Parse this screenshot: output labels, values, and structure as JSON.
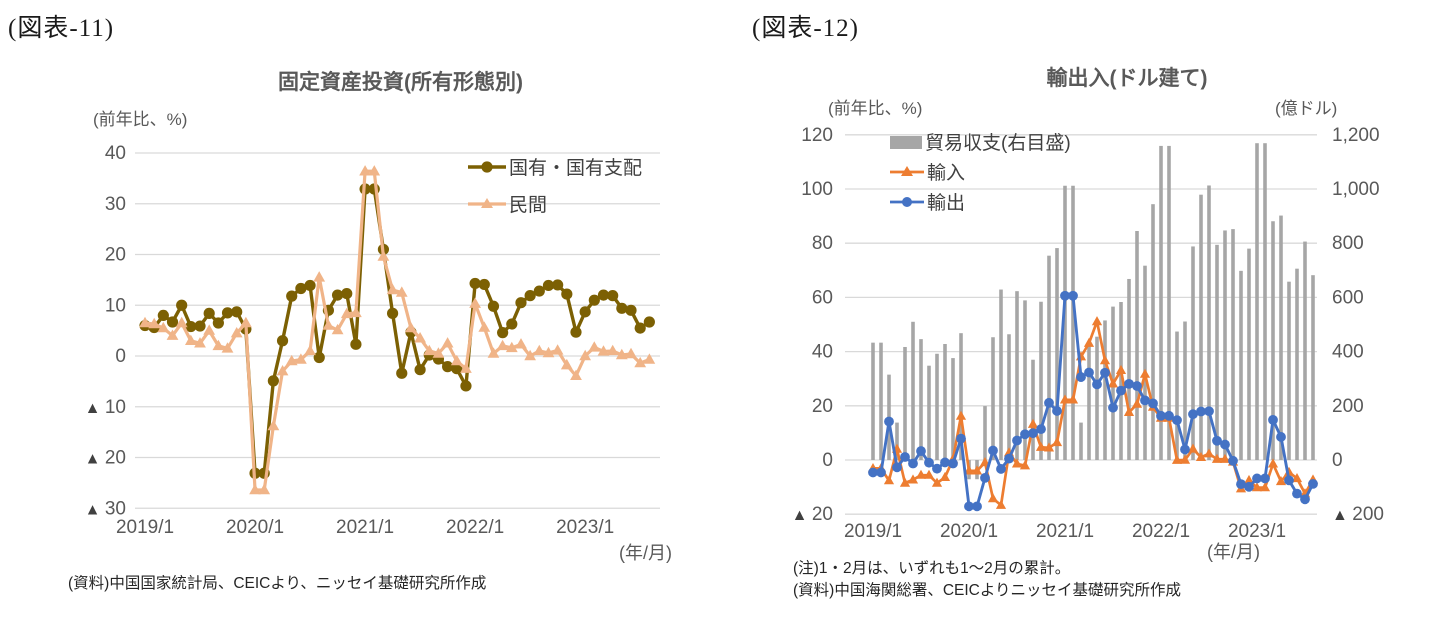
{
  "page": {
    "background": "#FFFFFF"
  },
  "chart_data": [
    {
      "id": "fig11",
      "type": "line",
      "tag": "(図表-11)",
      "title": "固定資産投資(所有形態別)",
      "left_axis_unit": "(前年比、%)",
      "x_axis_unit": "(年/月)",
      "source": "(資料)中国国家統計局、CEICより、ニッセイ基礎研究所作成",
      "x_start": "2019/1",
      "x_end": "2023/8",
      "x_frequency": "monthly",
      "x_tick_labels": [
        "2019/1",
        "2020/1",
        "2021/1",
        "2022/1",
        "2023/1"
      ],
      "y_left": {
        "min": -30,
        "max": 40,
        "step": 10,
        "labels": [
          "40",
          "30",
          "20",
          "10",
          "0",
          "▲ 10",
          "▲ 20",
          "▲ 30"
        ]
      },
      "grid_on": true,
      "grid_color": "#D9D9D9",
      "tick_color": "#595959",
      "negative_mark_color": "#404040",
      "legend_position": "top-right-inside",
      "series": [
        {
          "name": "国有・国有支配",
          "type": "line",
          "marker": "circle",
          "color": "#7C6003",
          "values": [
            6.0,
            5.6,
            8.0,
            6.7,
            10.0,
            5.8,
            5.9,
            8.4,
            6.5,
            8.5,
            8.7,
            5.3,
            -23.1,
            -23.1,
            -4.9,
            3.0,
            11.8,
            13.3,
            13.9,
            -0.3,
            9.0,
            12.0,
            12.3,
            2.3,
            32.9,
            32.9,
            21.0,
            8.4,
            -3.4,
            4.7,
            -2.7,
            0.2,
            -0.6,
            -2.1,
            -2.5,
            -5.9,
            14.3,
            14.1,
            9.8,
            4.6,
            6.3,
            10.5,
            11.9,
            12.8,
            13.9,
            14.0,
            12.2,
            4.7,
            8.7,
            11.0,
            12.0,
            11.9,
            9.4,
            9.0,
            5.5,
            6.7
          ]
        },
        {
          "name": "民間",
          "type": "line",
          "marker": "triangle",
          "color": "#F0B488",
          "values": [
            6.5,
            6.3,
            5.5,
            4.0,
            6.5,
            3.0,
            2.5,
            5.0,
            2.0,
            1.5,
            4.5,
            6.5,
            -26.4,
            -26.4,
            -13.8,
            -3.0,
            -1.0,
            -0.7,
            1.0,
            15.5,
            6.0,
            5.1,
            8.3,
            8.5,
            36.4,
            36.4,
            19.6,
            13.0,
            12.5,
            5.5,
            3.5,
            1.0,
            0.5,
            2.5,
            -1.0,
            -2.5,
            10.3,
            5.6,
            0.5,
            2.0,
            1.6,
            2.3,
            0.0,
            1.0,
            0.6,
            1.1,
            -1.8,
            -3.9,
            0.0,
            1.7,
            0.9,
            1.0,
            0.2,
            0.4,
            -1.4,
            -0.7
          ]
        }
      ]
    },
    {
      "id": "fig12",
      "type": "bar-line-combo",
      "tag": "(図表-12)",
      "title": "輸出入(ドル建て)",
      "left_axis_unit": "(前年比、%)",
      "right_axis_unit": "(億ドル)",
      "x_axis_unit": "(年/月)",
      "note": "(注)1・2月は、いずれも1～2月の累計。",
      "source": "(資料)中国海関総署、CEICよりニッセイ基礎研究所作成",
      "x_start": "2019/1",
      "x_end": "2023/8",
      "x_frequency": "monthly",
      "x_tick_labels": [
        "2019/1",
        "2020/1",
        "2021/1",
        "2022/1",
        "2023/1"
      ],
      "y_left": {
        "min": -20,
        "max": 120,
        "step": 20,
        "labels": [
          "120",
          "100",
          "80",
          "60",
          "40",
          "20",
          "0",
          "▲ 20"
        ]
      },
      "y_right": {
        "min": -200,
        "max": 1200,
        "step": 200,
        "labels": [
          "1,200",
          "1,000",
          "800",
          "600",
          "400",
          "200",
          "0",
          "▲ 200"
        ]
      },
      "grid_on": true,
      "grid_color": "#D9D9D9",
      "tick_color": "#595959",
      "negative_mark_color": "#404040",
      "legend_position": "top-left-inside",
      "series": [
        {
          "name": "貿易収支(右目盛)",
          "type": "bar",
          "axis": "right",
          "color": "#A6A6A6",
          "values": [
            433,
            433,
            315,
            138,
            417,
            510,
            446,
            348,
            392,
            428,
            376,
            468,
            -71,
            -71,
            199,
            453,
            629,
            464,
            623,
            589,
            370,
            584,
            754,
            782,
            1012,
            1012,
            138,
            428,
            455,
            515,
            566,
            583,
            668,
            845,
            717,
            944,
            1159,
            1159,
            474,
            511,
            788,
            979,
            1013,
            794,
            847,
            852,
            698,
            780,
            1169,
            1169,
            881,
            902,
            658,
            706,
            806,
            682
          ]
        },
        {
          "name": "輸入",
          "type": "line",
          "marker": "triangle",
          "axis": "left",
          "color": "#ED7D31",
          "values": [
            -3.1,
            -3.1,
            -7.6,
            4.0,
            -8.5,
            -7.3,
            -5.6,
            -5.6,
            -8.5,
            -6.4,
            0.3,
            16.2,
            -4.0,
            -4.0,
            -0.9,
            -14.2,
            -16.7,
            2.7,
            -1.4,
            -2.1,
            13.2,
            4.7,
            4.5,
            6.5,
            22.2,
            22.2,
            38.1,
            43.1,
            51.1,
            36.7,
            28.1,
            33.1,
            17.6,
            20.6,
            31.7,
            19.5,
            15.5,
            15.5,
            -0.1,
            0.0,
            4.1,
            1.0,
            2.3,
            0.3,
            0.3,
            -0.7,
            -10.6,
            -7.5,
            -10.2,
            -10.2,
            -1.4,
            -7.9,
            -4.5,
            -6.8,
            -12.4,
            -7.3
          ]
        },
        {
          "name": "輸出",
          "type": "line",
          "marker": "circle",
          "axis": "left",
          "color": "#4472C4",
          "values": [
            -4.6,
            -4.6,
            14.2,
            -2.7,
            1.1,
            -1.3,
            3.3,
            -1.0,
            -3.2,
            -0.9,
            -1.3,
            7.9,
            -17.1,
            -17.1,
            -6.6,
            3.5,
            -3.3,
            0.5,
            7.2,
            9.5,
            9.9,
            11.4,
            21.1,
            18.1,
            60.6,
            60.6,
            30.6,
            32.3,
            27.9,
            32.2,
            19.3,
            25.6,
            28.1,
            27.3,
            22.0,
            20.9,
            16.3,
            16.3,
            14.7,
            3.9,
            16.9,
            17.9,
            18.0,
            7.1,
            5.7,
            -0.3,
            -8.9,
            -9.9,
            -6.8,
            -6.8,
            14.8,
            8.5,
            -7.5,
            -12.4,
            -14.5,
            -8.8
          ]
        }
      ]
    }
  ]
}
